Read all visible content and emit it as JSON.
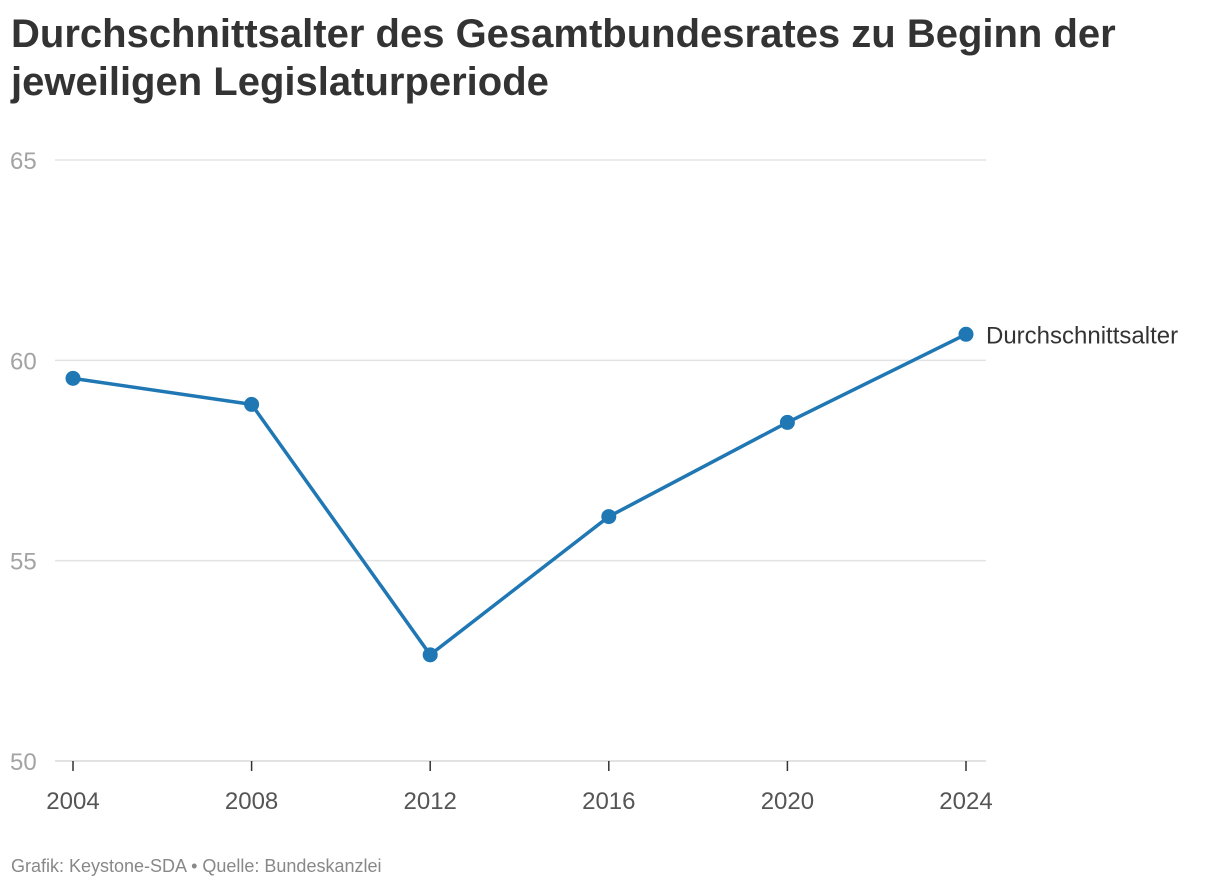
{
  "title": "Durchschnittsalter des Gesamtbundesrates zu Beginn der jeweiligen Legislaturperiode",
  "footer": "Grafik: Keystone-SDA • Quelle: Bundeskanzlei",
  "colors": {
    "line": "#1f77b4",
    "grid": "#e3e3e3",
    "axis": "#d8d8d8"
  },
  "chart_data": {
    "type": "line",
    "title": "Durchschnittsalter des Gesamtbundesrates zu Beginn der jeweiligen Legislaturperiode",
    "xlabel": "",
    "ylabel": "",
    "x": [
      2004,
      2008,
      2012,
      2016,
      2020,
      2024
    ],
    "x_tick_labels": [
      "2004",
      "2008",
      "2012",
      "2016",
      "2020",
      "2024"
    ],
    "y_ticks": [
      50,
      55,
      60,
      65
    ],
    "y_tick_labels": [
      "50",
      "55",
      "60",
      "65"
    ],
    "ylim": [
      50,
      65
    ],
    "xlim": [
      2004,
      2024
    ],
    "grid": true,
    "legend": "direct label at line end",
    "series": [
      {
        "name": "Durchschnittsalter",
        "values": [
          59.55,
          58.9,
          52.65,
          56.1,
          58.45,
          60.65
        ]
      }
    ]
  }
}
